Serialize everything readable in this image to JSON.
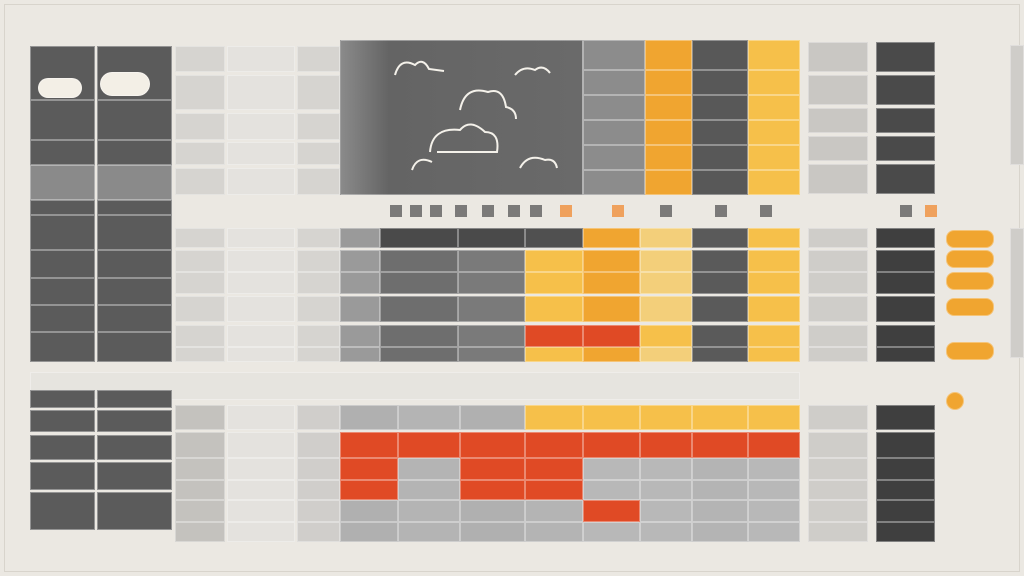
{
  "window": {
    "title": ""
  },
  "theme": {
    "background": "#ebe8e2",
    "dark_cell": "#5b5b5b",
    "mid_cell": "#7a7a7a",
    "light_cell": "#d6d4d0",
    "pale_cell": "#e4e2de",
    "orange": "#f0a530",
    "light_orange": "#f6c04a",
    "pale_orange": "#f3cf7a",
    "red": "#e04a25",
    "cloud_outline": "#f4f1ea"
  },
  "icons": {
    "hero": "cloud-icon",
    "badge_left": "cloud-badge-icon",
    "badge_right": "cloud-badge-icon",
    "status": "sun-icon"
  },
  "dashboard": {
    "header_left": "",
    "header_right": ""
  }
}
